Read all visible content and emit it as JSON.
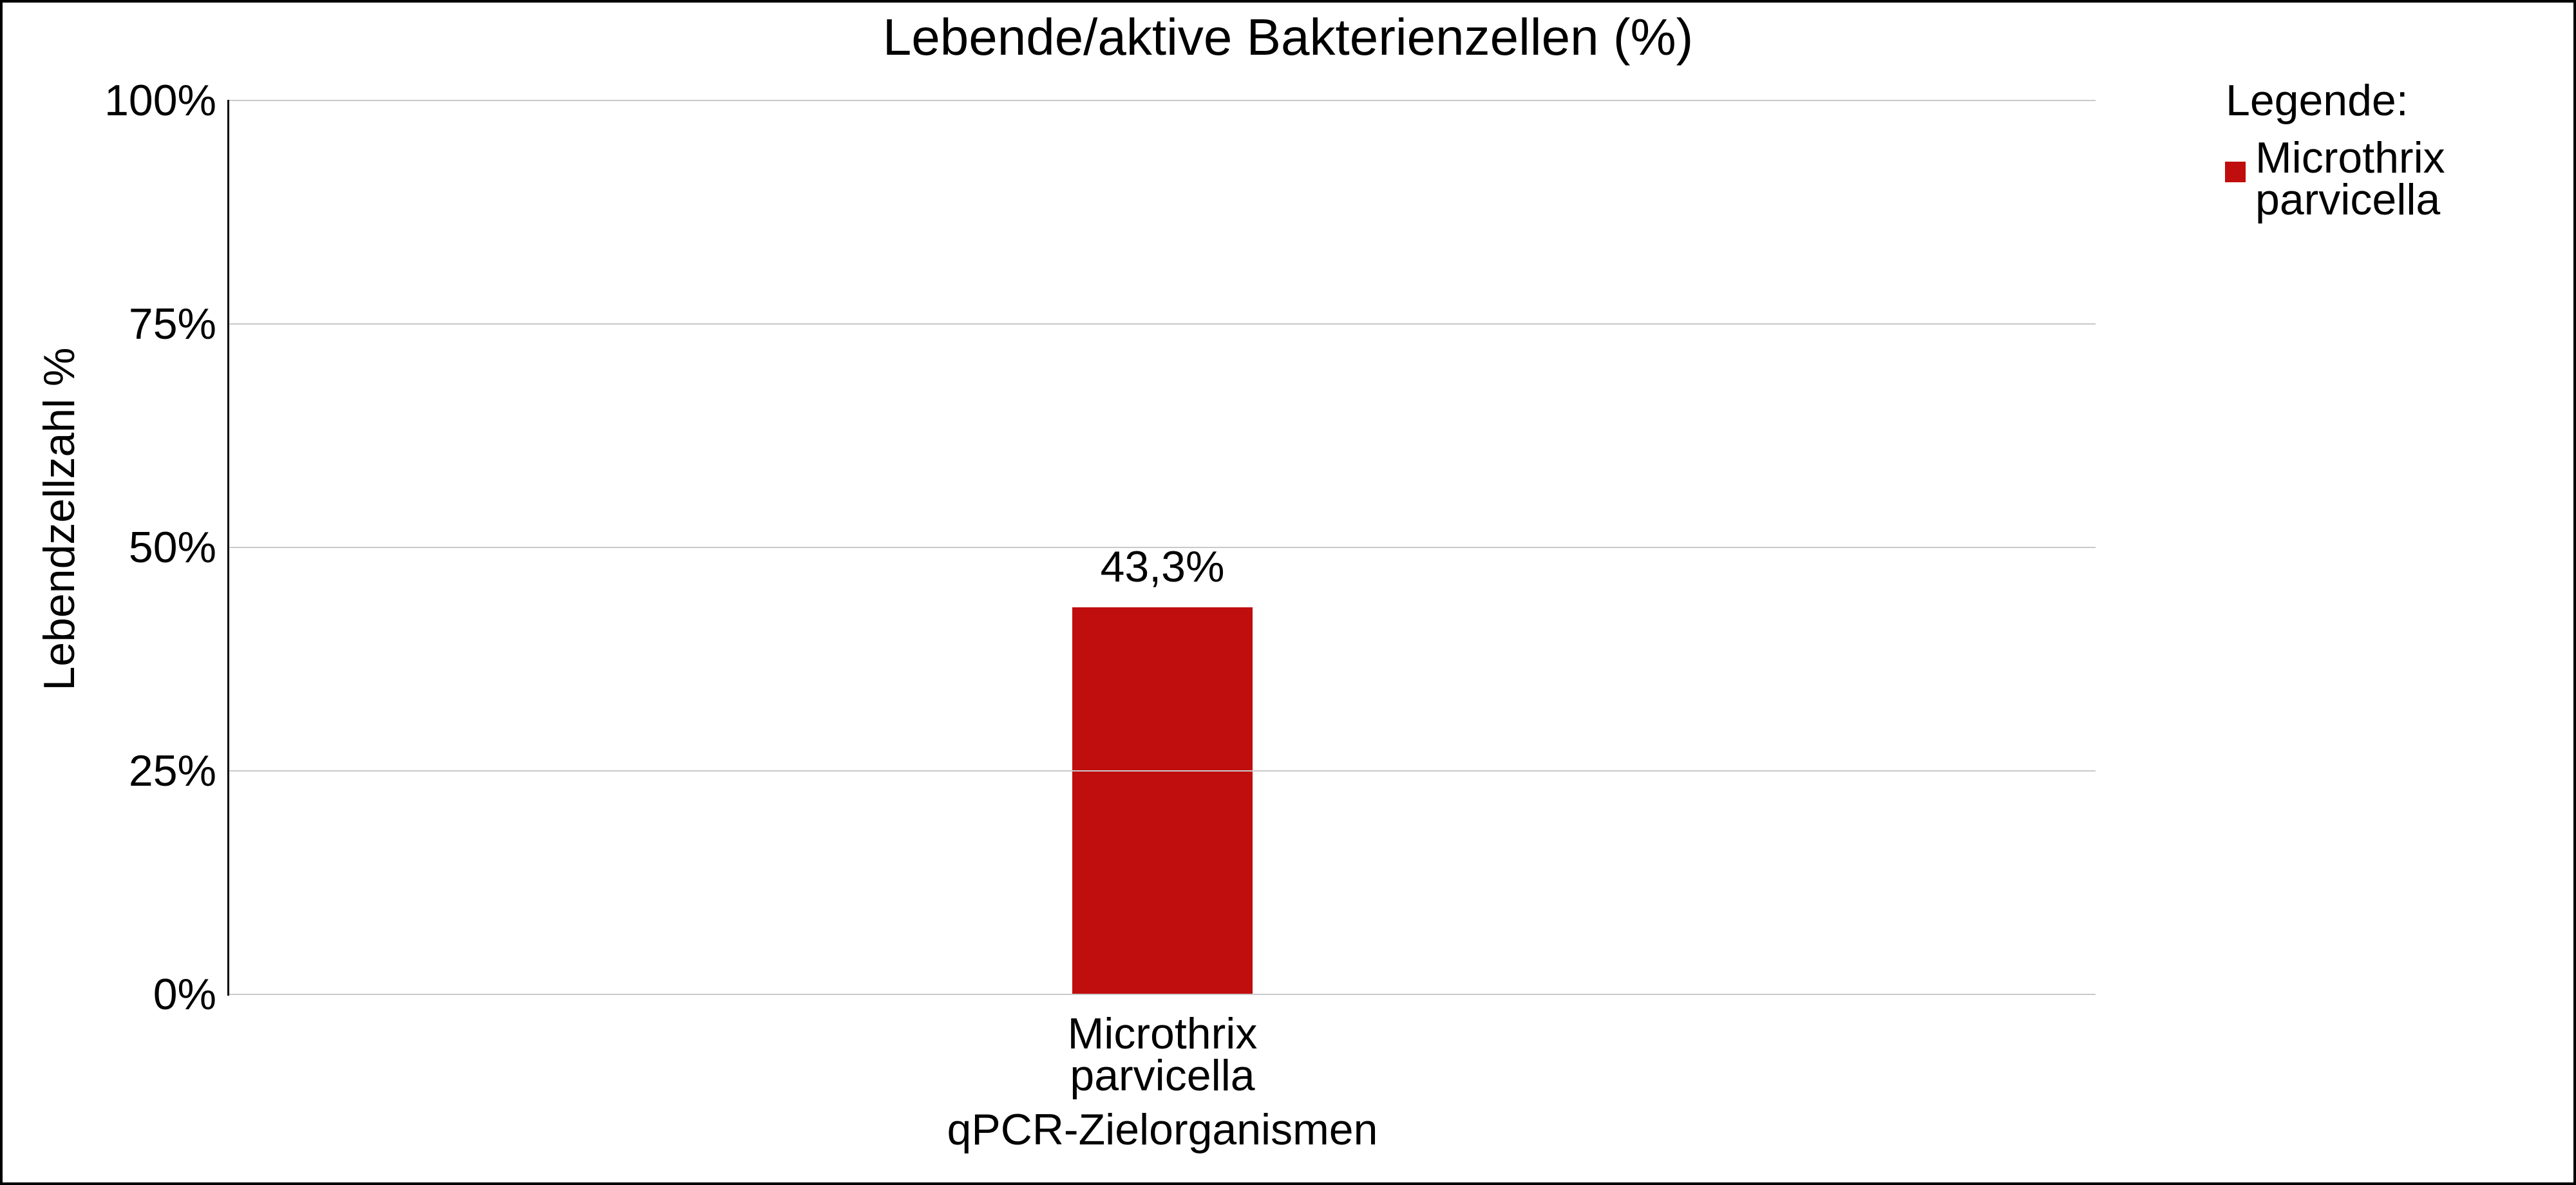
{
  "title": "Lebende/aktive Bakterienzellen (%)",
  "axes": {
    "y_label": "Lebendzellzahl %",
    "x_label": "qPCR-Zielorganismen"
  },
  "category": {
    "lines": [
      "Microthrix",
      "parvicella"
    ]
  },
  "legend": {
    "title": "Legende:",
    "items": [
      {
        "lines": [
          "Microthrix",
          "parvicella"
        ],
        "color": "#c00d0d"
      }
    ]
  },
  "colors": {
    "bar": "#c00d0d",
    "gridline": "#c9c9c9",
    "axis_line": "#000000",
    "frame_border": "#000000",
    "background": "#ffffff",
    "text": "#000000"
  },
  "chart_data": {
    "type": "bar",
    "title": "Lebende/aktive Bakterienzellen (%)",
    "categories": [
      "Microthrix parvicella"
    ],
    "values": [
      43.3
    ],
    "value_labels": [
      "43,3%"
    ],
    "xlabel": "qPCR-Zielorganismen",
    "ylabel": "Lebendzellzahl %",
    "ylim": [
      0,
      100
    ],
    "yticks": [
      100,
      75,
      50,
      25,
      0
    ],
    "ytick_labels": [
      "100%",
      "75%",
      "50%",
      "25%",
      "0%"
    ],
    "bar_color": "#c00d0d",
    "grid": true,
    "legend_position": "right",
    "legend_title": "Legende:",
    "legend_entries": [
      "Microthrix parvicella"
    ]
  }
}
